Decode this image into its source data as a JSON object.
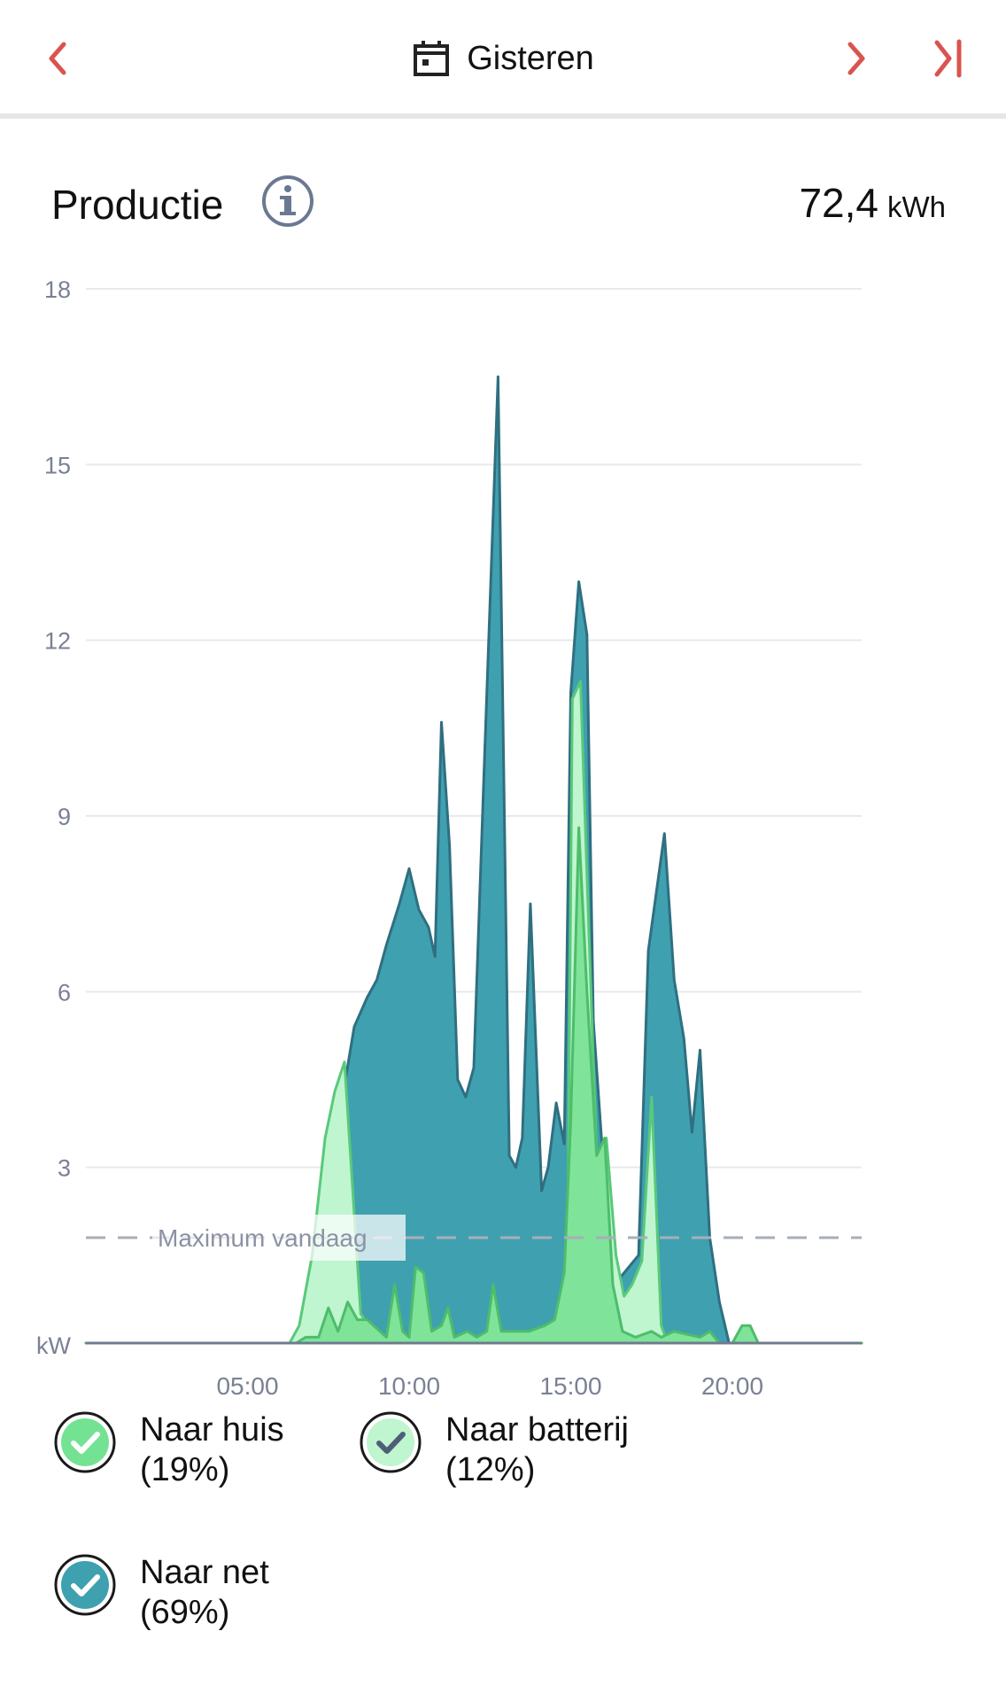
{
  "header": {
    "date_label": "Gisteren",
    "icons": {
      "prev": "chevron-left-icon",
      "calendar": "calendar-icon",
      "next": "chevron-right-icon",
      "last": "skip-to-last-icon"
    },
    "accent_color": "#d9544f"
  },
  "summary": {
    "title": "Productie",
    "total_value": "72,4",
    "total_unit": "kWh"
  },
  "chart_data": {
    "type": "area",
    "unit_label": "kW",
    "yticks": [
      "18",
      "15",
      "12",
      "9",
      "6",
      "3"
    ],
    "ylim": [
      0,
      18
    ],
    "xlim": [
      0,
      24
    ],
    "xticks": [
      {
        "x": 5,
        "label": "05:00"
      },
      {
        "x": 10,
        "label": "10:00"
      },
      {
        "x": 15,
        "label": "15:00"
      },
      {
        "x": 20,
        "label": "20:00"
      }
    ],
    "grid": true,
    "reference_line": {
      "label": "Maximum vandaag",
      "value": 1.8
    },
    "series": [
      {
        "name": "Naar net",
        "color": "#3fa0b0",
        "stroke": "#2f6f80",
        "points": [
          [
            0,
            0
          ],
          [
            6.3,
            0
          ],
          [
            6.6,
            0.2
          ],
          [
            7.0,
            0.6
          ],
          [
            7.3,
            1.7
          ],
          [
            7.7,
            3.2
          ],
          [
            8.0,
            4.4
          ],
          [
            8.3,
            5.4
          ],
          [
            8.7,
            5.9
          ],
          [
            9.0,
            6.2
          ],
          [
            9.3,
            6.8
          ],
          [
            9.7,
            7.5
          ],
          [
            10.0,
            8.1
          ],
          [
            10.3,
            7.4
          ],
          [
            10.6,
            7.1
          ],
          [
            10.8,
            6.6
          ],
          [
            11.0,
            10.6
          ],
          [
            11.25,
            8.5
          ],
          [
            11.5,
            4.5
          ],
          [
            11.75,
            4.2
          ],
          [
            12.0,
            4.7
          ],
          [
            12.3,
            9.5
          ],
          [
            12.75,
            16.5
          ],
          [
            13.1,
            3.2
          ],
          [
            13.3,
            3.0
          ],
          [
            13.5,
            3.5
          ],
          [
            13.75,
            7.5
          ],
          [
            14.1,
            2.6
          ],
          [
            14.3,
            3.0
          ],
          [
            14.55,
            4.1
          ],
          [
            14.8,
            3.4
          ],
          [
            15.0,
            11.1
          ],
          [
            15.25,
            13.0
          ],
          [
            15.5,
            12.1
          ],
          [
            15.7,
            5.5
          ],
          [
            15.95,
            3.5
          ],
          [
            16.2,
            1.5
          ],
          [
            16.5,
            1.1
          ],
          [
            16.8,
            1.3
          ],
          [
            17.1,
            1.5
          ],
          [
            17.4,
            6.7
          ],
          [
            17.9,
            8.7
          ],
          [
            18.2,
            6.2
          ],
          [
            18.5,
            5.2
          ],
          [
            18.75,
            3.6
          ],
          [
            19.0,
            5.0
          ],
          [
            19.3,
            1.8
          ],
          [
            19.6,
            0.7
          ],
          [
            19.9,
            0
          ],
          [
            24,
            0
          ]
        ]
      },
      {
        "name": "Naar batterij",
        "color": "#bff5cf",
        "stroke": "#59c97a",
        "points": [
          [
            0,
            0
          ],
          [
            6.3,
            0
          ],
          [
            6.6,
            0.3
          ],
          [
            7.0,
            1.5
          ],
          [
            7.4,
            3.5
          ],
          [
            7.7,
            4.3
          ],
          [
            8.0,
            4.8
          ],
          [
            8.5,
            0.5
          ],
          [
            9.0,
            0.1
          ],
          [
            14.0,
            0.1
          ],
          [
            14.5,
            0.2
          ],
          [
            14.9,
            1.5
          ],
          [
            15.05,
            11.0
          ],
          [
            15.3,
            11.3
          ],
          [
            15.5,
            8.0
          ],
          [
            15.8,
            3.2
          ],
          [
            16.1,
            3.5
          ],
          [
            16.4,
            1.5
          ],
          [
            16.65,
            0.8
          ],
          [
            16.9,
            1.0
          ],
          [
            17.2,
            1.4
          ],
          [
            17.5,
            4.2
          ],
          [
            17.8,
            0.3
          ],
          [
            18.0,
            0
          ],
          [
            24,
            0
          ]
        ]
      },
      {
        "name": "Naar huis",
        "color": "#7fe39a",
        "stroke": "#4dbd6a",
        "points": [
          [
            0,
            0
          ],
          [
            6.5,
            0
          ],
          [
            6.8,
            0.1
          ],
          [
            7.2,
            0.1
          ],
          [
            7.5,
            0.6
          ],
          [
            7.8,
            0.2
          ],
          [
            8.1,
            0.7
          ],
          [
            8.4,
            0.4
          ],
          [
            8.7,
            0.4
          ],
          [
            9.0,
            0.25
          ],
          [
            9.3,
            0.1
          ],
          [
            9.55,
            1.0
          ],
          [
            9.8,
            0.2
          ],
          [
            10.0,
            0.1
          ],
          [
            10.2,
            1.3
          ],
          [
            10.45,
            1.2
          ],
          [
            10.7,
            0.2
          ],
          [
            11.0,
            0.3
          ],
          [
            11.2,
            0.6
          ],
          [
            11.4,
            0.1
          ],
          [
            11.8,
            0.2
          ],
          [
            12.1,
            0.1
          ],
          [
            12.4,
            0.2
          ],
          [
            12.6,
            1.0
          ],
          [
            12.85,
            0.2
          ],
          [
            13.3,
            0.2
          ],
          [
            13.7,
            0.2
          ],
          [
            14.2,
            0.3
          ],
          [
            14.5,
            0.4
          ],
          [
            14.8,
            1.2
          ],
          [
            15.0,
            3.8
          ],
          [
            15.25,
            8.8
          ],
          [
            15.5,
            6.0
          ],
          [
            15.8,
            3.2
          ],
          [
            16.05,
            3.5
          ],
          [
            16.3,
            1.0
          ],
          [
            16.6,
            0.2
          ],
          [
            17.0,
            0.1
          ],
          [
            17.5,
            0.2
          ],
          [
            17.8,
            0.1
          ],
          [
            18.2,
            0.2
          ],
          [
            18.6,
            0.15
          ],
          [
            19.0,
            0.1
          ],
          [
            19.3,
            0.2
          ],
          [
            19.6,
            0
          ],
          [
            20.0,
            0
          ],
          [
            20.3,
            0.3
          ],
          [
            20.55,
            0.3
          ],
          [
            20.8,
            0
          ],
          [
            24,
            0
          ]
        ]
      }
    ]
  },
  "legend": [
    {
      "label": "Naar huis",
      "pct": "(19%)",
      "fill": "#73e393",
      "check": "#ffffff"
    },
    {
      "label": "Naar batterij",
      "pct": "(12%)",
      "fill": "#bff5cf",
      "check": "#4e5e78"
    },
    {
      "label": "Naar net",
      "pct": "(69%)",
      "fill": "#3fa0b0",
      "check": "#ffffff"
    }
  ]
}
